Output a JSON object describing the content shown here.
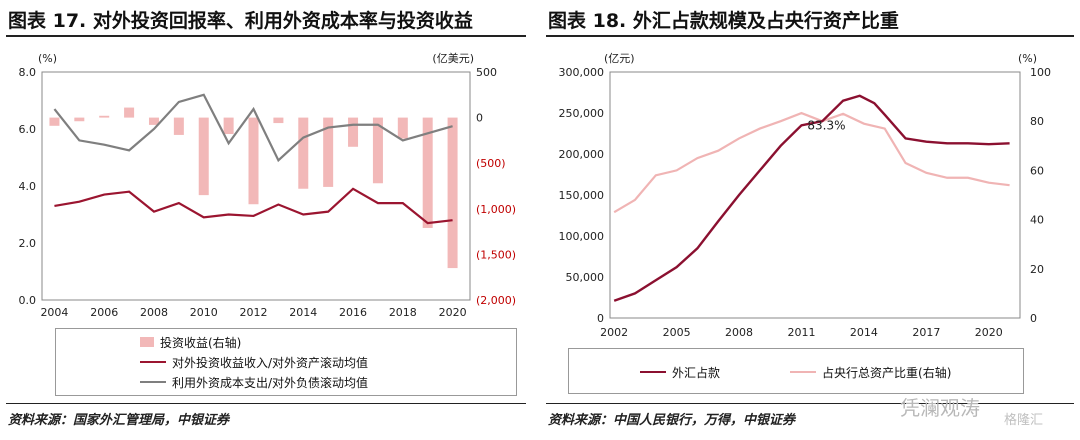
{
  "panels": [
    {
      "title": "图表 17. 对外投资回报率、利用外资成本率与投资收益",
      "source": "资料来源：国家外汇管理局，中银证券",
      "legend": [
        {
          "label": "投资收益(右轴)",
          "kind": "bar",
          "color": "#f2b8b8"
        },
        {
          "label": "对外投资收益收入/对外资产滚动均值",
          "kind": "line",
          "color": "#9b1530"
        },
        {
          "label": "利用外资成本支出/对外负债滚动均值",
          "kind": "line",
          "color": "#7f7f7f"
        }
      ]
    },
    {
      "title": "图表 18. 外汇占款规模及占央行资产比重",
      "source": "资料来源：中国人民银行，万得，中银证券",
      "legend": [
        {
          "label": "外汇占款",
          "kind": "line",
          "color": "#8b1030"
        },
        {
          "label": "占央行总资产比重(右轴)",
          "kind": "line",
          "color": "#f0b4b4"
        }
      ]
    }
  ],
  "watermark": "格隆汇",
  "watermark_handle": "凭澜观涛",
  "chart_data": [
    {
      "type": "bar",
      "ylabel_left": "(%)",
      "ylabel_right": "(亿美元)",
      "ylim_left": [
        0,
        8
      ],
      "ylim_right": [
        -2000,
        500
      ],
      "yticks_left": [
        "0.0",
        "2.0",
        "4.0",
        "6.0",
        "8.0"
      ],
      "yticks_right": [
        "(2,000)",
        "(1,500)",
        "(1,000)",
        "(500)",
        "0",
        "500"
      ],
      "xticks": [
        "2004",
        "2006",
        "2008",
        "2010",
        "2012",
        "2014",
        "2016",
        "2018",
        "2020"
      ],
      "bar_series": {
        "name": "投资收益(右轴)",
        "axis": "right",
        "x": [
          2004,
          2005,
          2006,
          2007,
          2008,
          2009,
          2010,
          2011,
          2012,
          2013,
          2014,
          2015,
          2016,
          2017,
          2018,
          2019,
          2020
        ],
        "values": [
          -90,
          -40,
          20,
          110,
          -80,
          -190,
          -850,
          -180,
          -950,
          -60,
          -780,
          -760,
          -320,
          -720,
          -230,
          -1210,
          -1650
        ]
      },
      "series": [
        {
          "name": "对外投资收益收入/对外资产滚动均值",
          "axis": "left",
          "x": [
            2004,
            2005,
            2006,
            2007,
            2008,
            2009,
            2010,
            2011,
            2012,
            2013,
            2014,
            2015,
            2016,
            2017,
            2018,
            2019,
            2020
          ],
          "values": [
            3.3,
            3.45,
            3.7,
            3.8,
            3.1,
            3.4,
            2.9,
            3.0,
            2.95,
            3.35,
            3.0,
            3.1,
            3.9,
            3.4,
            3.4,
            2.7,
            2.8
          ]
        },
        {
          "name": "利用外资成本支出/对外负债滚动均值",
          "axis": "left",
          "x": [
            2004,
            2005,
            2006,
            2007,
            2008,
            2009,
            2010,
            2011,
            2012,
            2013,
            2014,
            2015,
            2016,
            2017,
            2018,
            2019,
            2020
          ],
          "values": [
            6.7,
            5.6,
            5.45,
            5.25,
            6.0,
            6.95,
            7.2,
            5.5,
            6.7,
            4.9,
            5.7,
            6.05,
            6.15,
            6.15,
            5.6,
            5.85,
            6.1
          ]
        }
      ]
    },
    {
      "type": "line",
      "ylabel_left": "(亿元)",
      "ylabel_right": "(%)",
      "ylim_left": [
        0,
        300000
      ],
      "ylim_right": [
        0,
        100
      ],
      "yticks_left": [
        "0",
        "50,000",
        "100,000",
        "150,000",
        "200,000",
        "250,000",
        "300,000"
      ],
      "yticks_right": [
        "0",
        "20",
        "40",
        "60",
        "80",
        "100"
      ],
      "xticks": [
        "2002",
        "2005",
        "2008",
        "2011",
        "2014",
        "2017",
        "2020"
      ],
      "annotation": {
        "text": "83.3%",
        "x": 2012.2,
        "y": 230000
      },
      "series": [
        {
          "name": "外汇占款",
          "axis": "left",
          "x": [
            2002,
            2003,
            2004,
            2005,
            2006,
            2007,
            2008,
            2009,
            2010,
            2011,
            2012,
            2013,
            2013.8,
            2014.5,
            2015,
            2016,
            2017,
            2018,
            2019,
            2020,
            2021
          ],
          "values": [
            21000,
            30000,
            46000,
            62000,
            85000,
            118000,
            150000,
            180000,
            210000,
            235000,
            240000,
            265000,
            271000,
            262000,
            248000,
            219000,
            215000,
            213000,
            213000,
            212000,
            213000
          ]
        },
        {
          "name": "占央行总资产比重(右轴)",
          "axis": "right",
          "x": [
            2002,
            2003,
            2004,
            2005,
            2006,
            2007,
            2008,
            2009,
            2010,
            2011,
            2012,
            2013,
            2014,
            2015,
            2016,
            2017,
            2018,
            2019,
            2020,
            2021
          ],
          "values": [
            43,
            48,
            58,
            60,
            65,
            68,
            73,
            77,
            80,
            83.3,
            80,
            83,
            79,
            77,
            63,
            59,
            57,
            57,
            55,
            54
          ]
        }
      ]
    }
  ]
}
